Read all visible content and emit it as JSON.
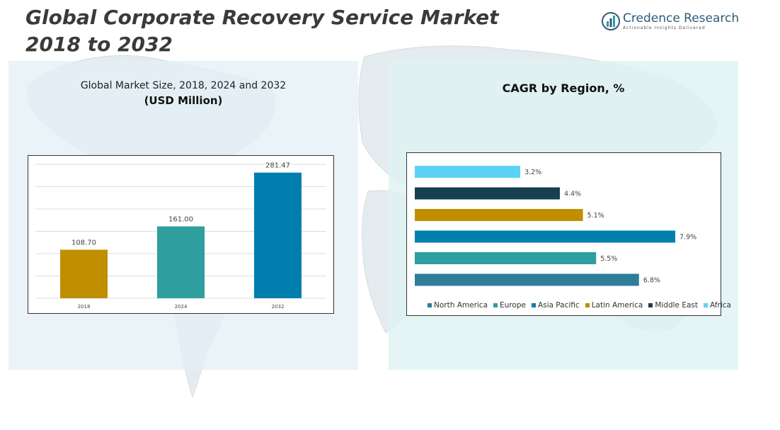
{
  "header": {
    "title_line1": "Global Corporate Recovery Service Market",
    "title_line2": "2018 to 2032"
  },
  "logo": {
    "name": "Credence Research",
    "tagline": "Actionable Insights Delivered"
  },
  "left_panel": {
    "title": "Global Market Size, 2018, 2024 and 2032",
    "subtitle": "(USD Million)"
  },
  "right_panel": {
    "title": "CAGR by Region, %"
  },
  "chart_data": [
    {
      "type": "bar",
      "title": "Global Market Size, 2018, 2024 and 2032",
      "subtitle": "(USD Million)",
      "categories": [
        "2018",
        "2024",
        "2032"
      ],
      "values": [
        108.7,
        161.0,
        281.47
      ],
      "value_labels": [
        "108.70",
        "161.00",
        "281.47"
      ],
      "colors": [
        "#bf8f00",
        "#2e9e9e",
        "#007fae"
      ],
      "ylim": [
        0,
        300
      ],
      "grid": true,
      "xlabel": "",
      "ylabel": ""
    },
    {
      "type": "bar",
      "orientation": "horizontal",
      "title": "CAGR by Region, %",
      "categories": [
        "Africa",
        "Middle East",
        "Latin America",
        "Asia Pacific",
        "Europe",
        "North America"
      ],
      "values": [
        3.2,
        4.4,
        5.1,
        7.9,
        5.5,
        6.8
      ],
      "value_labels": [
        "3.2%",
        "4.4%",
        "5.1%",
        "7.9%",
        "5.5%",
        "6.8%"
      ],
      "colors": [
        "#5cd3f5",
        "#173f4f",
        "#bf8f00",
        "#007fae",
        "#2e9e9e",
        "#2e7d9a"
      ],
      "xlim": [
        0,
        8.2
      ],
      "legend": {
        "position": "bottom",
        "entries": [
          {
            "label": "North America",
            "color": "#2e7d9a"
          },
          {
            "label": "Europe",
            "color": "#2e9e9e"
          },
          {
            "label": "Asia Pacific",
            "color": "#007fae"
          },
          {
            "label": "Latin America",
            "color": "#bf8f00"
          },
          {
            "label": "Middle East",
            "color": "#173f4f"
          },
          {
            "label": "Africa",
            "color": "#5cd3f5"
          }
        ]
      }
    }
  ]
}
